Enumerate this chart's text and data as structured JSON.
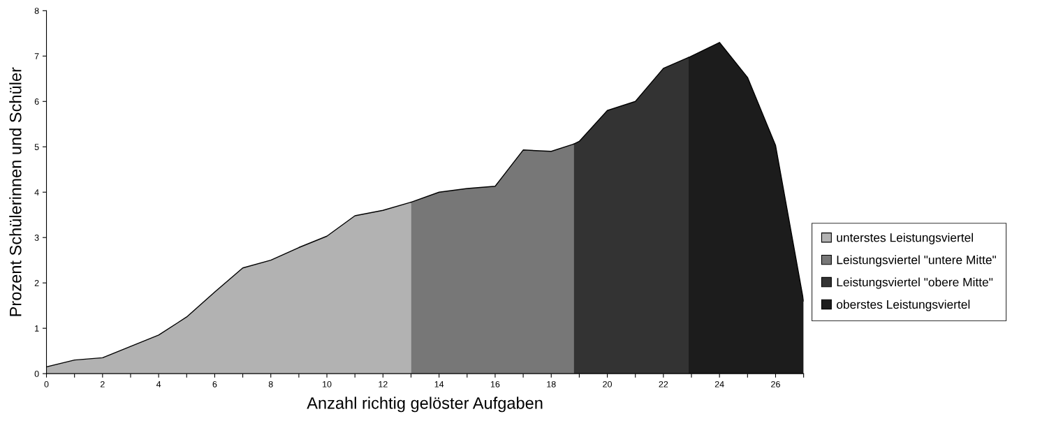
{
  "chart_data": {
    "type": "area",
    "xlabel": "Anzahl richtig gelöster Aufgaben",
    "ylabel": "Prozent Schülerinnen und Schüler",
    "series": [
      {
        "name": "unterstes Leistungsviertel",
        "color": "#b2b2b2",
        "x": [
          0,
          1,
          2,
          3,
          4,
          5,
          6,
          7,
          8,
          9,
          10,
          11,
          12,
          13
        ],
        "values": [
          0.15,
          0.3,
          0.35,
          0.6,
          0.85,
          1.25,
          1.8,
          2.33,
          2.5,
          2.78,
          3.03,
          3.48,
          3.6,
          3.78
        ]
      },
      {
        "name": "Leistungsviertel \"untere Mitte\"",
        "color": "#777777",
        "x": [
          13,
          14,
          15,
          16,
          17,
          18,
          18.8
        ],
        "values": [
          3.78,
          4.0,
          4.08,
          4.13,
          4.93,
          4.9,
          5.06
        ]
      },
      {
        "name": "Leistungsviertel \"obere Mitte\"",
        "color": "#333333",
        "x": [
          18.8,
          19,
          20,
          21,
          22,
          22.9
        ],
        "values": [
          5.06,
          5.12,
          5.8,
          6.0,
          6.73,
          6.97
        ]
      },
      {
        "name": "oberstes Leistungsviertel",
        "color": "#1c1c1c",
        "x": [
          22.9,
          23,
          24,
          25,
          26,
          27
        ],
        "values": [
          6.97,
          7.0,
          7.3,
          6.53,
          5.03,
          1.6
        ]
      }
    ],
    "xlim": [
      0,
      27
    ],
    "xticks": [
      0,
      {
        "value": 1,
        "label": null
      },
      2,
      {
        "value": 3,
        "label": null
      },
      4,
      {
        "value": 5,
        "label": null
      },
      6,
      {
        "value": 7,
        "label": null
      },
      8,
      {
        "value": 9,
        "label": null
      },
      10,
      {
        "value": 11,
        "label": null
      },
      12,
      {
        "value": 13,
        "label": null
      },
      14,
      {
        "value": 15,
        "label": null
      },
      16,
      {
        "value": 17,
        "label": null
      },
      18,
      {
        "value": 19,
        "label": null
      },
      20,
      {
        "value": 21,
        "label": null
      },
      22,
      {
        "value": 23,
        "label": null
      },
      24,
      {
        "value": 25,
        "label": null
      },
      26,
      {
        "value": 27,
        "label": null
      }
    ],
    "ylim": [
      0,
      8
    ],
    "yticks": [
      0,
      1,
      2,
      3,
      4,
      5,
      6,
      7,
      8
    ],
    "grid": false,
    "legend": "right"
  }
}
